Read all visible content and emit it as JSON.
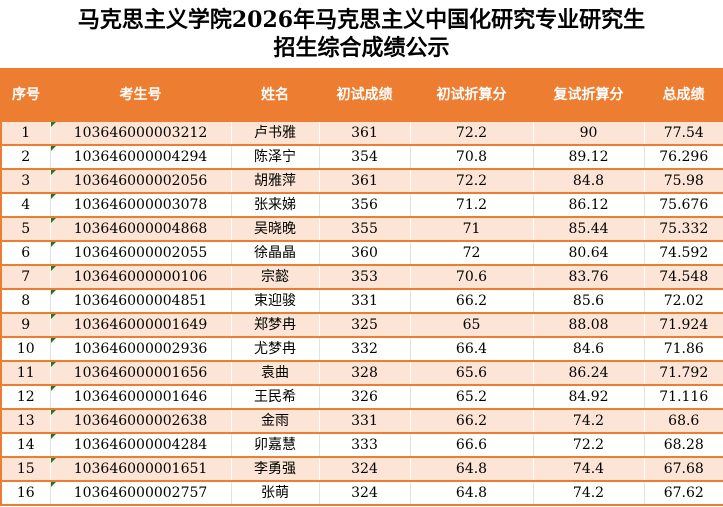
{
  "title": {
    "line1": "马克思主义学院2026年马克思主义中国化研究专业研究生",
    "line2": "招生综合成绩公示"
  },
  "table": {
    "columns": [
      "序号",
      "考生号",
      "姓名",
      "初试成绩",
      "初试折算分",
      "复试折算分",
      "总成绩"
    ],
    "column_keys": [
      "seq",
      "candidate_no",
      "name",
      "initial_score",
      "initial_converted_score",
      "retest_converted_score",
      "total_score"
    ],
    "rows": [
      [
        "1",
        "103646000003212",
        "卢书雅",
        "361",
        "72.2",
        "90",
        "77.54"
      ],
      [
        "2",
        "103646000004294",
        "陈泽宁",
        "354",
        "70.8",
        "89.12",
        "76.296"
      ],
      [
        "3",
        "103646000002056",
        "胡雅萍",
        "361",
        "72.2",
        "84.8",
        "75.98"
      ],
      [
        "4",
        "103646000003078",
        "张来娣",
        "356",
        "71.2",
        "86.12",
        "75.676"
      ],
      [
        "5",
        "103646000004868",
        "吴晓晚",
        "355",
        "71",
        "85.44",
        "75.332"
      ],
      [
        "6",
        "103646000002055",
        "徐晶晶",
        "360",
        "72",
        "80.64",
        "74.592"
      ],
      [
        "7",
        "103646000000106",
        "宗懿",
        "353",
        "70.6",
        "83.76",
        "74.548"
      ],
      [
        "8",
        "103646000004851",
        "束迎骏",
        "331",
        "66.2",
        "85.6",
        "72.02"
      ],
      [
        "9",
        "103646000001649",
        "郑梦冉",
        "325",
        "65",
        "88.08",
        "71.924"
      ],
      [
        "10",
        "103646000002936",
        "尤梦冉",
        "332",
        "66.4",
        "84.6",
        "71.86"
      ],
      [
        "11",
        "103646000001656",
        "袁曲",
        "328",
        "65.6",
        "86.24",
        "71.792"
      ],
      [
        "12",
        "103646000001646",
        "王民希",
        "326",
        "65.2",
        "84.92",
        "71.116"
      ],
      [
        "13",
        "103646000002638",
        "金雨",
        "331",
        "66.2",
        "74.2",
        "68.6"
      ],
      [
        "14",
        "103646000004284",
        "卯嘉慧",
        "333",
        "66.6",
        "72.2",
        "68.28"
      ],
      [
        "15",
        "103646000001651",
        "李勇强",
        "324",
        "64.8",
        "74.4",
        "67.68"
      ],
      [
        "16",
        "103646000002757",
        "张萌",
        "324",
        "64.8",
        "74.2",
        "67.62"
      ]
    ]
  },
  "icons": {
    "number_as_text_triangle_icon": "green-corner-triangle"
  },
  "colors": {
    "header_bg": "#ED7D31",
    "header_text": "#FFFFFF",
    "stripe_bg": "#FCE4D6",
    "row_border": "#ED7D31",
    "grid_line": "#E2E2E2",
    "error_triangle": "#1E7B1E",
    "body_text": "#000000"
  }
}
